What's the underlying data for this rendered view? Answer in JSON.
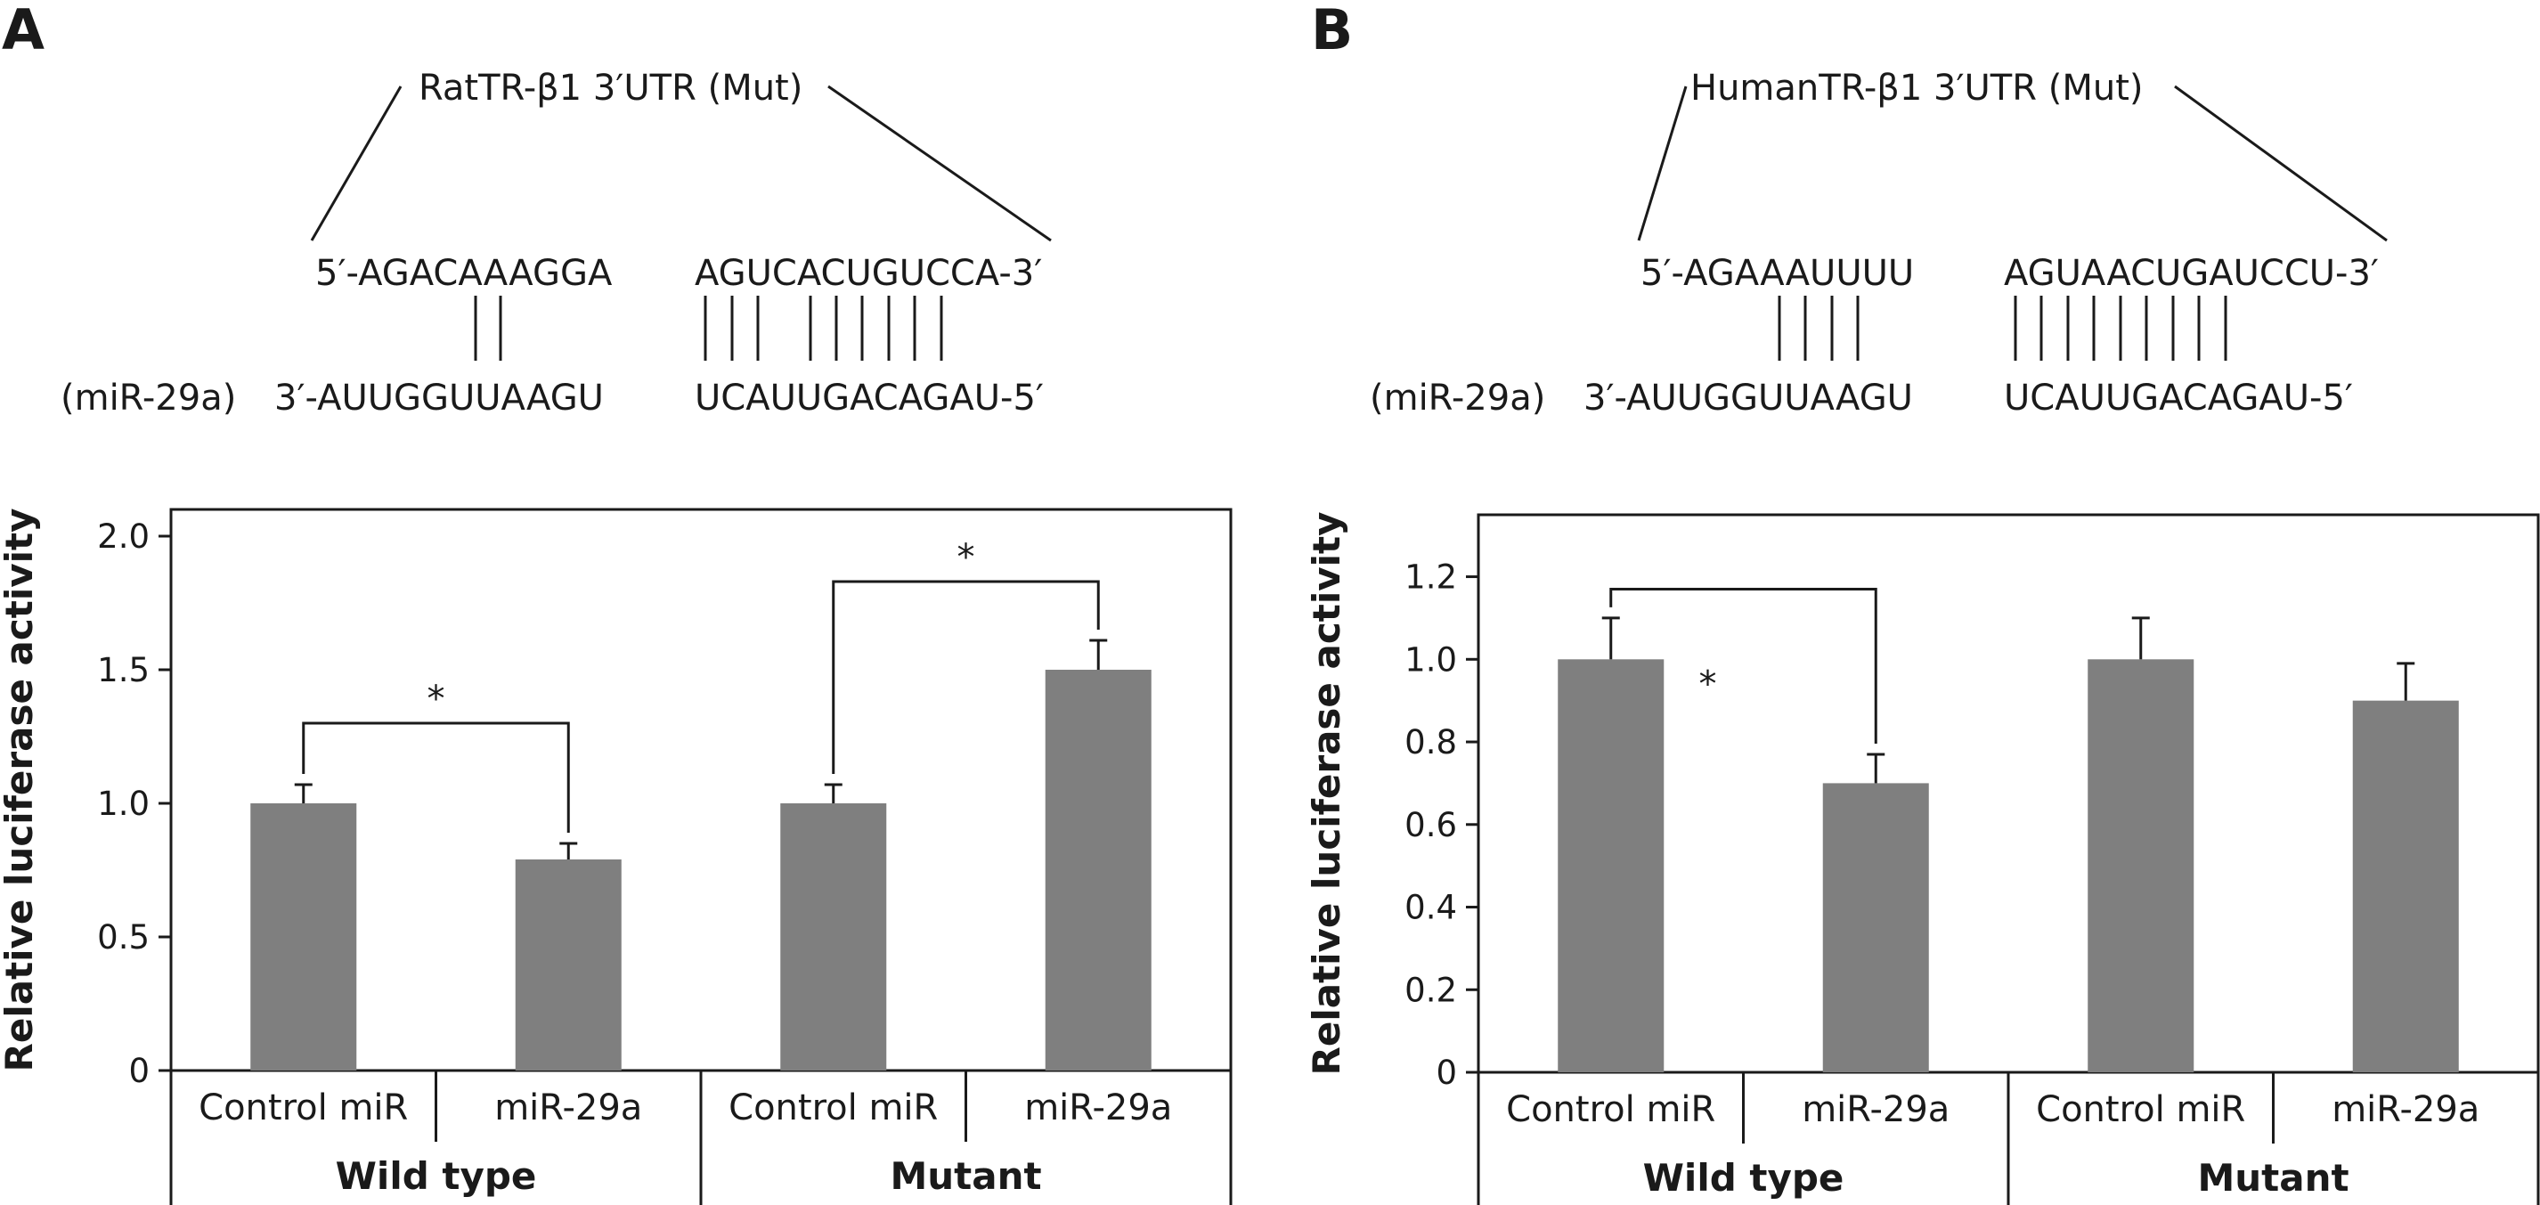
{
  "figure": {
    "panel_a_label": "A",
    "panel_b_label": "B"
  },
  "panel_a": {
    "construct": "RatTR-β1 3′UTR (Mut)",
    "target_left": "5′-AGACAAAGGA",
    "target_right": "AGUCACUGUCCA-3′",
    "mirna_name": "(miR-29a)",
    "mirna_left": "3′-AUUGGUUAAGU",
    "mirna_right": "UCAUUGACAGAU-5′"
  },
  "panel_b": {
    "construct": "HumanTR-β1 3′UTR (Mut)",
    "target_left": "5′-AGAAAUUUU",
    "target_right": "AGUAACUGAUCCU-3′",
    "mirna_name": "(miR-29a)",
    "mirna_left": "3′-AUUGGUUAAGU",
    "mirna_right": "UCAUUGACAGAU-5′"
  },
  "chart_data": [
    {
      "type": "bar",
      "panel": "A",
      "ylabel": "Relative luciferase activity",
      "ylim": [
        0,
        2.1
      ],
      "yticks": [
        0,
        0.5,
        1.0,
        1.5,
        2.0
      ],
      "ytick_labels": [
        "0",
        "0.5",
        "1.0",
        "1.5",
        "2.0"
      ],
      "categories": [
        "Control miR",
        "miR-29a",
        "Control miR",
        "miR-29a"
      ],
      "groups": [
        {
          "name": "Wild type",
          "span": [
            0,
            1
          ]
        },
        {
          "name": "Mutant",
          "span": [
            2,
            3
          ]
        }
      ],
      "values": [
        1.0,
        0.79,
        1.0,
        1.5
      ],
      "errors": [
        0.07,
        0.06,
        0.07,
        0.11
      ],
      "significance": [
        {
          "pair": [
            0,
            1
          ],
          "label": "*",
          "level": 1.3
        },
        {
          "pair": [
            2,
            3
          ],
          "label": "*",
          "level": 1.83
        }
      ]
    },
    {
      "type": "bar",
      "panel": "B",
      "ylabel": "Relative luciferase activity",
      "ylim": [
        0,
        1.35
      ],
      "yticks": [
        0,
        0.2,
        0.4,
        0.6,
        0.8,
        1.0,
        1.2
      ],
      "ytick_labels": [
        "0",
        "0.2",
        "0.4",
        "0.6",
        "0.8",
        "1.0",
        "1.2"
      ],
      "categories": [
        "Control miR",
        "miR-29a",
        "Control miR",
        "miR-29a"
      ],
      "groups": [
        {
          "name": "Wild type",
          "span": [
            0,
            1
          ]
        },
        {
          "name": "Mutant",
          "span": [
            2,
            3
          ]
        }
      ],
      "values": [
        1.0,
        0.7,
        1.0,
        0.9
      ],
      "errors": [
        0.1,
        0.07,
        0.1,
        0.09
      ],
      "significance": [
        {
          "pair": [
            0,
            1
          ],
          "label": "*",
          "level": 1.17
        }
      ]
    }
  ]
}
